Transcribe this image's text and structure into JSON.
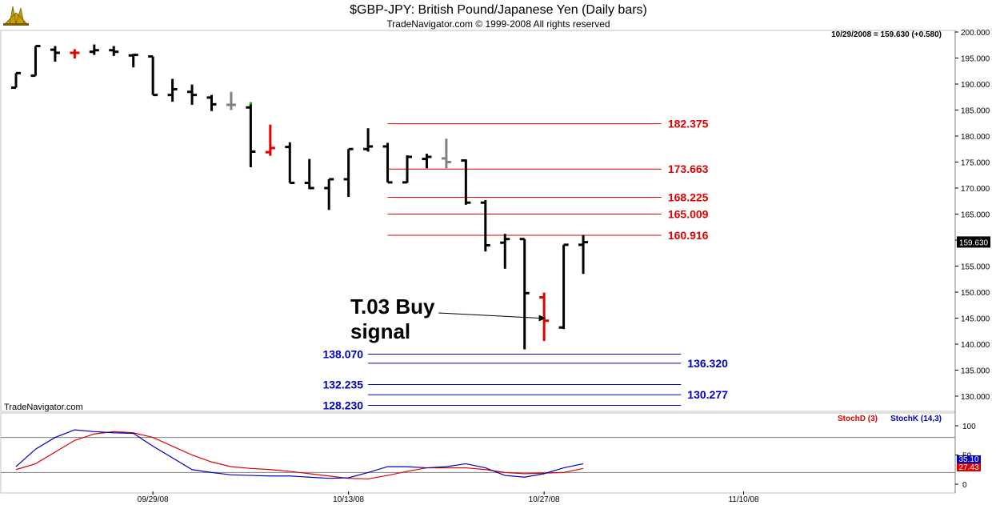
{
  "header": {
    "title": "$GBP-JPY:  British Pound/Japanese Yen  (Daily bars)",
    "copyright": "TradeNavigator.com © 1999-2008 All rights reserved",
    "last_quote": "10/29/2008 = 159.630 (+0.580)"
  },
  "watermark": "TradeNavigator.com",
  "annotation": {
    "line1": "T.03 Buy",
    "line2": "signal"
  },
  "colors": {
    "bar": "#000000",
    "signal": "#e00000",
    "neutral": "#808080",
    "up_tick": "#00c000",
    "stoch_d": "#e00000",
    "stoch_k": "#0000c0",
    "target": "#e00000",
    "support": "#0000c0"
  },
  "chart_data": [
    {
      "type": "ohlc",
      "title": "$GBP-JPY:  British Pound/Japanese Yen  (Daily bars)",
      "ylim": [
        128,
        201
      ],
      "y_ticks": [
        "200.000",
        "195.000",
        "190.000",
        "185.000",
        "180.000",
        "175.000",
        "170.000",
        "165.000",
        "160.000",
        "155.000",
        "150.000",
        "145.000",
        "140.000",
        "135.000",
        "130.000"
      ],
      "x_labels": [
        "09/29/08",
        "10/13/08",
        "10/27/08",
        "11/10/08"
      ],
      "x_label_bar_index": [
        7,
        17,
        27,
        37.2
      ],
      "last_price_label": "159.630",
      "bars": [
        {
          "o": 189.3,
          "h": 192.1,
          "l": 189.3,
          "c": 192.1
        },
        {
          "o": 191.6,
          "h": 197.3,
          "l": 191.6,
          "c": 197.3
        },
        {
          "o": 196.6,
          "h": 197.3,
          "l": 194.3,
          "c": 196.0
        },
        {
          "o": 196.0,
          "h": 196.7,
          "l": 194.9,
          "c": 196.0,
          "color": "signal"
        },
        {
          "o": 196.2,
          "h": 197.6,
          "l": 195.6,
          "c": 196.5
        },
        {
          "o": 196.5,
          "h": 197.3,
          "l": 195.4,
          "c": 196.2
        },
        {
          "o": 195.5,
          "h": 195.8,
          "l": 193.2,
          "c": 195.6
        },
        {
          "o": 195.3,
          "h": 195.3,
          "l": 187.9,
          "c": 187.9
        },
        {
          "o": 187.9,
          "h": 191.0,
          "l": 186.6,
          "c": 189.0
        },
        {
          "o": 188.5,
          "h": 189.9,
          "l": 186.0,
          "c": 187.9
        },
        {
          "o": 187.4,
          "h": 187.9,
          "l": 184.8,
          "c": 186.1
        },
        {
          "o": 186.0,
          "h": 188.5,
          "l": 185.0,
          "c": 186.0,
          "color": "neutral"
        },
        {
          "o": 185.5,
          "h": 186.3,
          "l": 174.0,
          "c": 177.0
        },
        {
          "o": 176.9,
          "h": 182.2,
          "l": 176.2,
          "c": 177.7,
          "color": "signal"
        },
        {
          "o": 177.9,
          "h": 178.8,
          "l": 171.0,
          "c": 171.0
        },
        {
          "o": 171.0,
          "h": 175.6,
          "l": 169.8,
          "c": 170.0
        },
        {
          "o": 170.0,
          "h": 171.7,
          "l": 165.8,
          "c": 171.7
        },
        {
          "o": 171.7,
          "h": 177.5,
          "l": 168.3,
          "c": 177.5
        },
        {
          "o": 177.5,
          "h": 181.5,
          "l": 177.0,
          "c": 178.0
        },
        {
          "o": 178.0,
          "h": 178.7,
          "l": 171.1,
          "c": 171.1
        },
        {
          "o": 171.1,
          "h": 176.3,
          "l": 171.0,
          "c": 176.0
        },
        {
          "o": 175.6,
          "h": 176.6,
          "l": 173.8,
          "c": 176.0
        },
        {
          "o": 175.7,
          "h": 179.5,
          "l": 173.8,
          "c": 175.0,
          "color": "neutral"
        },
        {
          "o": 175.3,
          "h": 175.5,
          "l": 166.8,
          "c": 167.2
        },
        {
          "o": 167.2,
          "h": 167.7,
          "l": 157.8,
          "c": 159.0
        },
        {
          "o": 159.5,
          "h": 161.2,
          "l": 154.5,
          "c": 160.2
        },
        {
          "o": 160.2,
          "h": 160.2,
          "l": 139.0,
          "c": 149.8
        },
        {
          "o": 149.0,
          "h": 149.9,
          "l": 140.6,
          "c": 144.5,
          "color": "signal"
        },
        {
          "o": 143.2,
          "h": 159.1,
          "l": 142.9,
          "c": 159.1
        },
        {
          "o": 159.1,
          "h": 161.0,
          "l": 153.5,
          "c": 159.6
        }
      ],
      "last_bar_up_tick": {
        "bar": 12,
        "price": 186.3
      },
      "levels": [
        {
          "value": 182.375,
          "label": "182.375",
          "color": "target",
          "from_bar": 19,
          "to_bar": 33,
          "label_side": "right"
        },
        {
          "value": 173.663,
          "label": "173.663",
          "color": "target",
          "from_bar": 19,
          "to_bar": 33,
          "label_side": "right"
        },
        {
          "value": 168.225,
          "label": "168.225",
          "color": "target",
          "from_bar": 19,
          "to_bar": 33,
          "label_side": "right"
        },
        {
          "value": 165.009,
          "label": "165.009",
          "color": "target",
          "from_bar": 19,
          "to_bar": 33,
          "label_side": "right"
        },
        {
          "value": 160.916,
          "label": "160.916",
          "color": "target",
          "from_bar": 19,
          "to_bar": 33,
          "label_side": "right"
        },
        {
          "value": 138.07,
          "label": "138.070",
          "color": "support",
          "from_bar": 18,
          "to_bar": 34,
          "label_side": "left"
        },
        {
          "value": 136.32,
          "label": "136.320",
          "color": "support",
          "from_bar": 18,
          "to_bar": 34,
          "label_side": "right"
        },
        {
          "value": 132.235,
          "label": "132.235",
          "color": "support",
          "from_bar": 18,
          "to_bar": 34,
          "label_side": "left"
        },
        {
          "value": 130.277,
          "label": "130.277",
          "color": "support",
          "from_bar": 18,
          "to_bar": 34,
          "label_side": "right"
        },
        {
          "value": 128.23,
          "label": "128.230",
          "color": "support",
          "from_bar": 18,
          "to_bar": 34,
          "label_side": "left"
        }
      ],
      "arrow": {
        "from_bar": 21.6,
        "from_price": 146.0,
        "to_bar": 27.1,
        "to_price": 145.0
      }
    },
    {
      "type": "line",
      "title": "",
      "legend": [
        "StochD (3)",
        "StochK (14,3)"
      ],
      "ylim": [
        0,
        110
      ],
      "y_ticks": [
        "100",
        "50",
        "0"
      ],
      "reference_lines": [
        80,
        20
      ],
      "last_value_labels": [
        "35.10",
        "27.43"
      ],
      "series": [
        {
          "name": "StochD (3)",
          "color": "stoch_d",
          "values": [
            25,
            35,
            55,
            75,
            86,
            90,
            88,
            80,
            65,
            50,
            38,
            30,
            27,
            25,
            22,
            18,
            14,
            10,
            9,
            15,
            22,
            28,
            28,
            28,
            25,
            20,
            18,
            19,
            20,
            27
          ]
        },
        {
          "name": "StochK (14,3)",
          "color": "stoch_k",
          "values": [
            30,
            60,
            80,
            93,
            90,
            88,
            87,
            65,
            45,
            25,
            20,
            16,
            15,
            14,
            14,
            12,
            10,
            11,
            20,
            30,
            30,
            28,
            30,
            35,
            28,
            15,
            12,
            18,
            28,
            35
          ]
        }
      ]
    }
  ]
}
